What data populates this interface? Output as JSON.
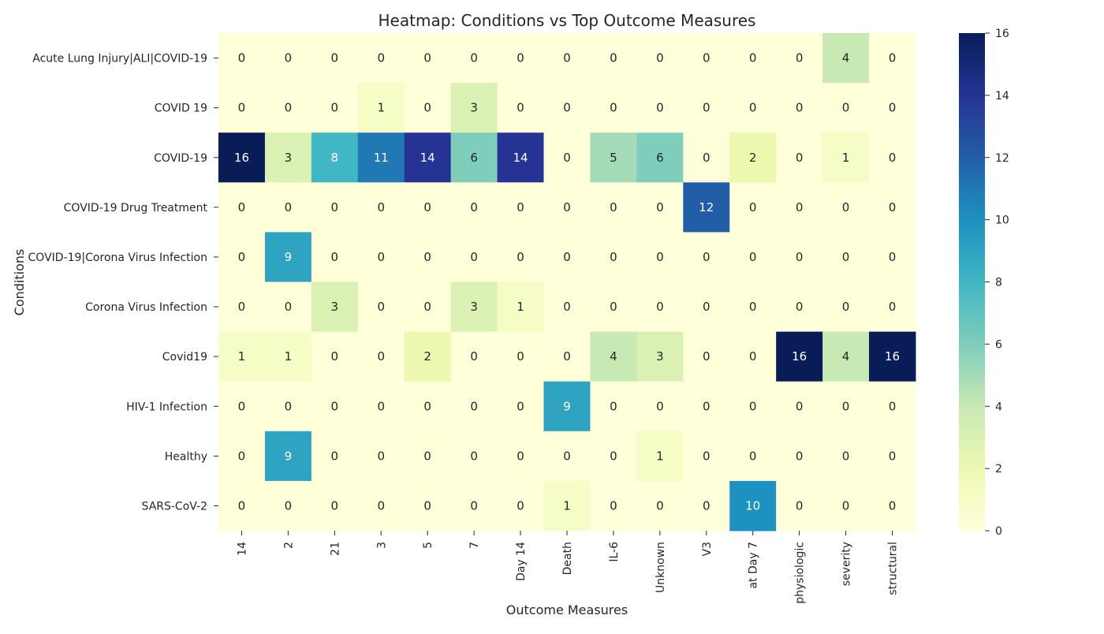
{
  "chart_data": {
    "type": "heatmap",
    "title": "Heatmap: Conditions vs Top Outcome Measures",
    "xlabel": "Outcome Measures",
    "ylabel": "Conditions",
    "x_categories": [
      "14",
      "2",
      "21",
      "3",
      "5",
      "7",
      "Day 14",
      "Death",
      "IL-6",
      "Unknown",
      "V3",
      "at Day 7",
      "physiologic",
      "severity",
      "structural"
    ],
    "y_categories": [
      "Acute Lung Injury|ALI|COVID-19",
      "COVID 19",
      "COVID-19",
      "COVID-19 Drug Treatment",
      "COVID-19|Corona Virus Infection",
      "Corona Virus Infection",
      "Covid19",
      "HIV-1 Infection",
      "Healthy",
      "SARS-CoV-2"
    ],
    "values": [
      [
        0,
        0,
        0,
        0,
        0,
        0,
        0,
        0,
        0,
        0,
        0,
        0,
        0,
        4,
        0
      ],
      [
        0,
        0,
        0,
        1,
        0,
        3,
        0,
        0,
        0,
        0,
        0,
        0,
        0,
        0,
        0
      ],
      [
        16,
        3,
        8,
        11,
        14,
        6,
        14,
        0,
        5,
        6,
        0,
        2,
        0,
        1,
        0
      ],
      [
        0,
        0,
        0,
        0,
        0,
        0,
        0,
        0,
        0,
        0,
        12,
        0,
        0,
        0,
        0
      ],
      [
        0,
        9,
        0,
        0,
        0,
        0,
        0,
        0,
        0,
        0,
        0,
        0,
        0,
        0,
        0
      ],
      [
        0,
        0,
        3,
        0,
        0,
        3,
        1,
        0,
        0,
        0,
        0,
        0,
        0,
        0,
        0
      ],
      [
        1,
        1,
        0,
        0,
        2,
        0,
        0,
        0,
        4,
        3,
        0,
        0,
        16,
        4,
        16
      ],
      [
        0,
        0,
        0,
        0,
        0,
        0,
        0,
        9,
        0,
        0,
        0,
        0,
        0,
        0,
        0
      ],
      [
        0,
        9,
        0,
        0,
        0,
        0,
        0,
        0,
        0,
        1,
        0,
        0,
        0,
        0,
        0
      ],
      [
        0,
        0,
        0,
        0,
        0,
        0,
        0,
        1,
        0,
        0,
        0,
        10,
        0,
        0,
        0
      ]
    ],
    "colorbar": {
      "colormap": "YlGnBu",
      "range": [
        0,
        16
      ],
      "ticks": [
        0,
        2,
        4,
        6,
        8,
        10,
        12,
        14,
        16
      ]
    },
    "annotations": "cell values shown",
    "grid": false
  }
}
